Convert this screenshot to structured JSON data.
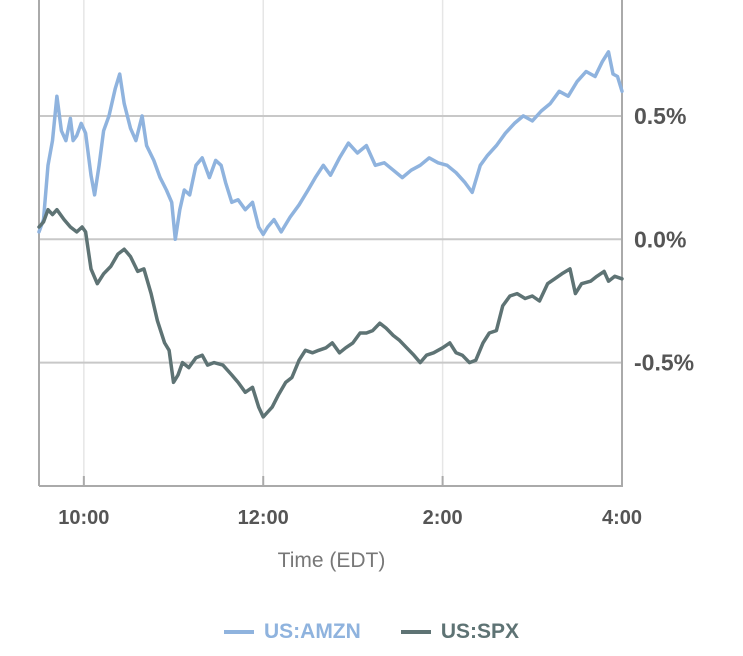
{
  "chart_data": {
    "type": "line",
    "xlabel": "Time (EDT)",
    "x_ticks": [
      "10:00",
      "12:00",
      "2:00",
      "4:00"
    ],
    "y_ticks": [
      {
        "value": 0.5,
        "label": "0.5%"
      },
      {
        "value": 0.0,
        "label": "0.0%"
      },
      {
        "value": -0.5,
        "label": "-0.5%"
      }
    ],
    "x_range_hours": [
      9.5,
      16.0
    ],
    "ylim": [
      -1.0,
      0.97
    ],
    "grid": true,
    "legend_position": "bottom-center",
    "series": [
      {
        "name": "US:AMZN",
        "color": "#8fb3de",
        "points": [
          [
            9.5,
            0.03
          ],
          [
            9.55,
            0.08
          ],
          [
            9.6,
            0.3
          ],
          [
            9.65,
            0.4
          ],
          [
            9.7,
            0.58
          ],
          [
            9.75,
            0.44
          ],
          [
            9.8,
            0.4
          ],
          [
            9.85,
            0.49
          ],
          [
            9.88,
            0.4
          ],
          [
            9.92,
            0.42
          ],
          [
            9.97,
            0.47
          ],
          [
            10.02,
            0.43
          ],
          [
            10.08,
            0.26
          ],
          [
            10.12,
            0.18
          ],
          [
            10.17,
            0.3
          ],
          [
            10.22,
            0.44
          ],
          [
            10.28,
            0.5
          ],
          [
            10.35,
            0.61
          ],
          [
            10.4,
            0.67
          ],
          [
            10.45,
            0.55
          ],
          [
            10.52,
            0.45
          ],
          [
            10.58,
            0.4
          ],
          [
            10.65,
            0.5
          ],
          [
            10.7,
            0.38
          ],
          [
            10.78,
            0.32
          ],
          [
            10.85,
            0.25
          ],
          [
            10.92,
            0.2
          ],
          [
            10.98,
            0.15
          ],
          [
            11.02,
            0.0
          ],
          [
            11.07,
            0.12
          ],
          [
            11.12,
            0.2
          ],
          [
            11.18,
            0.18
          ],
          [
            11.25,
            0.3
          ],
          [
            11.32,
            0.33
          ],
          [
            11.4,
            0.25
          ],
          [
            11.47,
            0.32
          ],
          [
            11.53,
            0.3
          ],
          [
            11.58,
            0.23
          ],
          [
            11.65,
            0.15
          ],
          [
            11.72,
            0.16
          ],
          [
            11.8,
            0.12
          ],
          [
            11.88,
            0.15
          ],
          [
            11.95,
            0.05
          ],
          [
            12.0,
            0.02
          ],
          [
            12.05,
            0.05
          ],
          [
            12.12,
            0.08
          ],
          [
            12.2,
            0.03
          ],
          [
            12.3,
            0.09
          ],
          [
            12.4,
            0.14
          ],
          [
            12.5,
            0.2
          ],
          [
            12.58,
            0.25
          ],
          [
            12.67,
            0.3
          ],
          [
            12.75,
            0.26
          ],
          [
            12.85,
            0.33
          ],
          [
            12.95,
            0.39
          ],
          [
            13.05,
            0.35
          ],
          [
            13.15,
            0.38
          ],
          [
            13.25,
            0.3
          ],
          [
            13.35,
            0.31
          ],
          [
            13.45,
            0.28
          ],
          [
            13.55,
            0.25
          ],
          [
            13.65,
            0.28
          ],
          [
            13.75,
            0.3
          ],
          [
            13.85,
            0.33
          ],
          [
            13.95,
            0.31
          ],
          [
            14.05,
            0.3
          ],
          [
            14.15,
            0.27
          ],
          [
            14.25,
            0.23
          ],
          [
            14.33,
            0.19
          ],
          [
            14.42,
            0.3
          ],
          [
            14.5,
            0.34
          ],
          [
            14.6,
            0.38
          ],
          [
            14.7,
            0.43
          ],
          [
            14.8,
            0.47
          ],
          [
            14.9,
            0.5
          ],
          [
            15.0,
            0.48
          ],
          [
            15.1,
            0.52
          ],
          [
            15.2,
            0.55
          ],
          [
            15.3,
            0.6
          ],
          [
            15.4,
            0.58
          ],
          [
            15.5,
            0.64
          ],
          [
            15.6,
            0.68
          ],
          [
            15.7,
            0.66
          ],
          [
            15.78,
            0.72
          ],
          [
            15.85,
            0.76
          ],
          [
            15.9,
            0.67
          ],
          [
            15.95,
            0.66
          ],
          [
            16.0,
            0.6
          ]
        ]
      },
      {
        "name": "US:SPX",
        "color": "#5e7374",
        "points": [
          [
            9.5,
            0.05
          ],
          [
            9.55,
            0.07
          ],
          [
            9.6,
            0.12
          ],
          [
            9.65,
            0.1
          ],
          [
            9.7,
            0.12
          ],
          [
            9.78,
            0.08
          ],
          [
            9.85,
            0.05
          ],
          [
            9.92,
            0.03
          ],
          [
            9.98,
            0.05
          ],
          [
            10.02,
            0.03
          ],
          [
            10.08,
            -0.12
          ],
          [
            10.15,
            -0.18
          ],
          [
            10.22,
            -0.14
          ],
          [
            10.3,
            -0.11
          ],
          [
            10.38,
            -0.06
          ],
          [
            10.45,
            -0.04
          ],
          [
            10.52,
            -0.07
          ],
          [
            10.6,
            -0.13
          ],
          [
            10.67,
            -0.12
          ],
          [
            10.75,
            -0.22
          ],
          [
            10.82,
            -0.33
          ],
          [
            10.9,
            -0.42
          ],
          [
            10.95,
            -0.45
          ],
          [
            11.0,
            -0.58
          ],
          [
            11.05,
            -0.55
          ],
          [
            11.1,
            -0.5
          ],
          [
            11.17,
            -0.52
          ],
          [
            11.25,
            -0.48
          ],
          [
            11.32,
            -0.47
          ],
          [
            11.38,
            -0.51
          ],
          [
            11.45,
            -0.5
          ],
          [
            11.55,
            -0.51
          ],
          [
            11.65,
            -0.55
          ],
          [
            11.72,
            -0.58
          ],
          [
            11.8,
            -0.62
          ],
          [
            11.88,
            -0.6
          ],
          [
            11.95,
            -0.68
          ],
          [
            12.0,
            -0.72
          ],
          [
            12.05,
            -0.7
          ],
          [
            12.1,
            -0.68
          ],
          [
            12.17,
            -0.63
          ],
          [
            12.25,
            -0.58
          ],
          [
            12.32,
            -0.56
          ],
          [
            12.4,
            -0.49
          ],
          [
            12.47,
            -0.45
          ],
          [
            12.55,
            -0.46
          ],
          [
            12.62,
            -0.45
          ],
          [
            12.7,
            -0.44
          ],
          [
            12.77,
            -0.42
          ],
          [
            12.85,
            -0.46
          ],
          [
            12.92,
            -0.44
          ],
          [
            13.0,
            -0.42
          ],
          [
            13.08,
            -0.38
          ],
          [
            13.15,
            -0.38
          ],
          [
            13.22,
            -0.37
          ],
          [
            13.3,
            -0.34
          ],
          [
            13.37,
            -0.36
          ],
          [
            13.45,
            -0.39
          ],
          [
            13.52,
            -0.41
          ],
          [
            13.6,
            -0.44
          ],
          [
            13.68,
            -0.47
          ],
          [
            13.75,
            -0.5
          ],
          [
            13.82,
            -0.47
          ],
          [
            13.9,
            -0.46
          ],
          [
            14.0,
            -0.44
          ],
          [
            14.08,
            -0.42
          ],
          [
            14.15,
            -0.46
          ],
          [
            14.22,
            -0.47
          ],
          [
            14.3,
            -0.5
          ],
          [
            14.37,
            -0.49
          ],
          [
            14.45,
            -0.42
          ],
          [
            14.52,
            -0.38
          ],
          [
            14.6,
            -0.37
          ],
          [
            14.67,
            -0.27
          ],
          [
            14.75,
            -0.23
          ],
          [
            14.83,
            -0.22
          ],
          [
            14.92,
            -0.24
          ],
          [
            15.0,
            -0.23
          ],
          [
            15.08,
            -0.25
          ],
          [
            15.17,
            -0.18
          ],
          [
            15.25,
            -0.16
          ],
          [
            15.33,
            -0.14
          ],
          [
            15.42,
            -0.12
          ],
          [
            15.48,
            -0.22
          ],
          [
            15.55,
            -0.18
          ],
          [
            15.65,
            -0.17
          ],
          [
            15.72,
            -0.15
          ],
          [
            15.8,
            -0.13
          ],
          [
            15.85,
            -0.17
          ],
          [
            15.92,
            -0.15
          ],
          [
            16.0,
            -0.16
          ]
        ]
      }
    ]
  }
}
